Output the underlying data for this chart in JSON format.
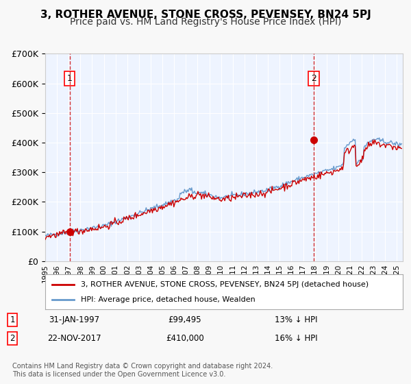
{
  "title": "3, ROTHER AVENUE, STONE CROSS, PEVENSEY, BN24 5PJ",
  "subtitle": "Price paid vs. HM Land Registry's House Price Index (HPI)",
  "ylim": [
    0,
    700000
  ],
  "yticks": [
    0,
    100000,
    200000,
    300000,
    400000,
    500000,
    600000,
    700000
  ],
  "ytick_labels": [
    "£0",
    "£100K",
    "£200K",
    "£300K",
    "£400K",
    "£500K",
    "£600K",
    "£700K"
  ],
  "xlim_start": 1995.0,
  "xlim_end": 2025.5,
  "sale1_x": 1997.08,
  "sale1_y": 99495,
  "sale1_label": "1",
  "sale1_date": "31-JAN-1997",
  "sale1_price": "£99,495",
  "sale1_note": "13% ↓ HPI",
  "sale2_x": 2017.9,
  "sale2_y": 410000,
  "sale2_label": "2",
  "sale2_date": "22-NOV-2017",
  "sale2_price": "£410,000",
  "sale2_note": "16% ↓ HPI",
  "hpi_color": "#6699cc",
  "price_color": "#cc0000",
  "dashed_line_color": "#cc0000",
  "plot_bg_color": "#eef4ff",
  "grid_color": "#ffffff",
  "legend_label_price": "3, ROTHER AVENUE, STONE CROSS, PEVENSEY, BN24 5PJ (detached house)",
  "legend_label_hpi": "HPI: Average price, detached house, Wealden",
  "footer": "Contains HM Land Registry data © Crown copyright and database right 2024.\nThis data is licensed under the Open Government Licence v3.0.",
  "title_fontsize": 11,
  "subtitle_fontsize": 10,
  "tick_fontsize": 9
}
